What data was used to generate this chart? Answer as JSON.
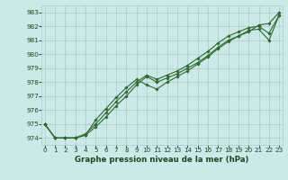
{
  "title": "Graphe pression niveau de la mer (hPa)",
  "x": [
    0,
    1,
    2,
    3,
    4,
    5,
    6,
    7,
    8,
    9,
    10,
    11,
    12,
    13,
    14,
    15,
    16,
    17,
    18,
    19,
    20,
    21,
    22,
    23
  ],
  "line1": [
    975.0,
    974.0,
    974.0,
    974.0,
    974.2,
    974.8,
    975.5,
    976.3,
    977.0,
    977.8,
    978.4,
    978.0,
    978.3,
    978.6,
    979.0,
    979.4,
    979.9,
    980.5,
    981.0,
    981.3,
    981.7,
    981.8,
    981.0,
    982.8
  ],
  "line2": [
    975.0,
    974.0,
    974.0,
    974.0,
    974.2,
    975.3,
    976.1,
    976.9,
    977.6,
    978.2,
    977.8,
    977.5,
    978.0,
    978.4,
    978.8,
    979.3,
    979.8,
    980.4,
    980.9,
    981.3,
    981.6,
    982.1,
    982.2,
    983.0
  ],
  "line3": [
    975.0,
    974.0,
    974.0,
    974.0,
    974.3,
    975.0,
    975.8,
    976.6,
    977.3,
    978.0,
    978.5,
    978.2,
    978.5,
    978.8,
    979.2,
    979.7,
    980.2,
    980.8,
    981.3,
    981.6,
    981.9,
    982.0,
    981.5,
    982.8
  ],
  "ylim": [
    973.5,
    983.5
  ],
  "xlim": [
    -0.3,
    23.3
  ],
  "yticks": [
    974,
    975,
    976,
    977,
    978,
    979,
    980,
    981,
    982,
    983
  ],
  "xticks": [
    0,
    1,
    2,
    3,
    4,
    5,
    6,
    7,
    8,
    9,
    10,
    11,
    12,
    13,
    14,
    15,
    16,
    17,
    18,
    19,
    20,
    21,
    22,
    23
  ],
  "line_color": "#2d6a2d",
  "bg_color": "#cce8e8",
  "grid_color": "#aacccc",
  "title_color": "#1a4a1a",
  "tick_color": "#1a4a1a",
  "marker": "D",
  "markersize": 1.8,
  "linewidth": 0.8,
  "tick_fontsize": 5.2,
  "xlabel_fontsize": 6.2
}
